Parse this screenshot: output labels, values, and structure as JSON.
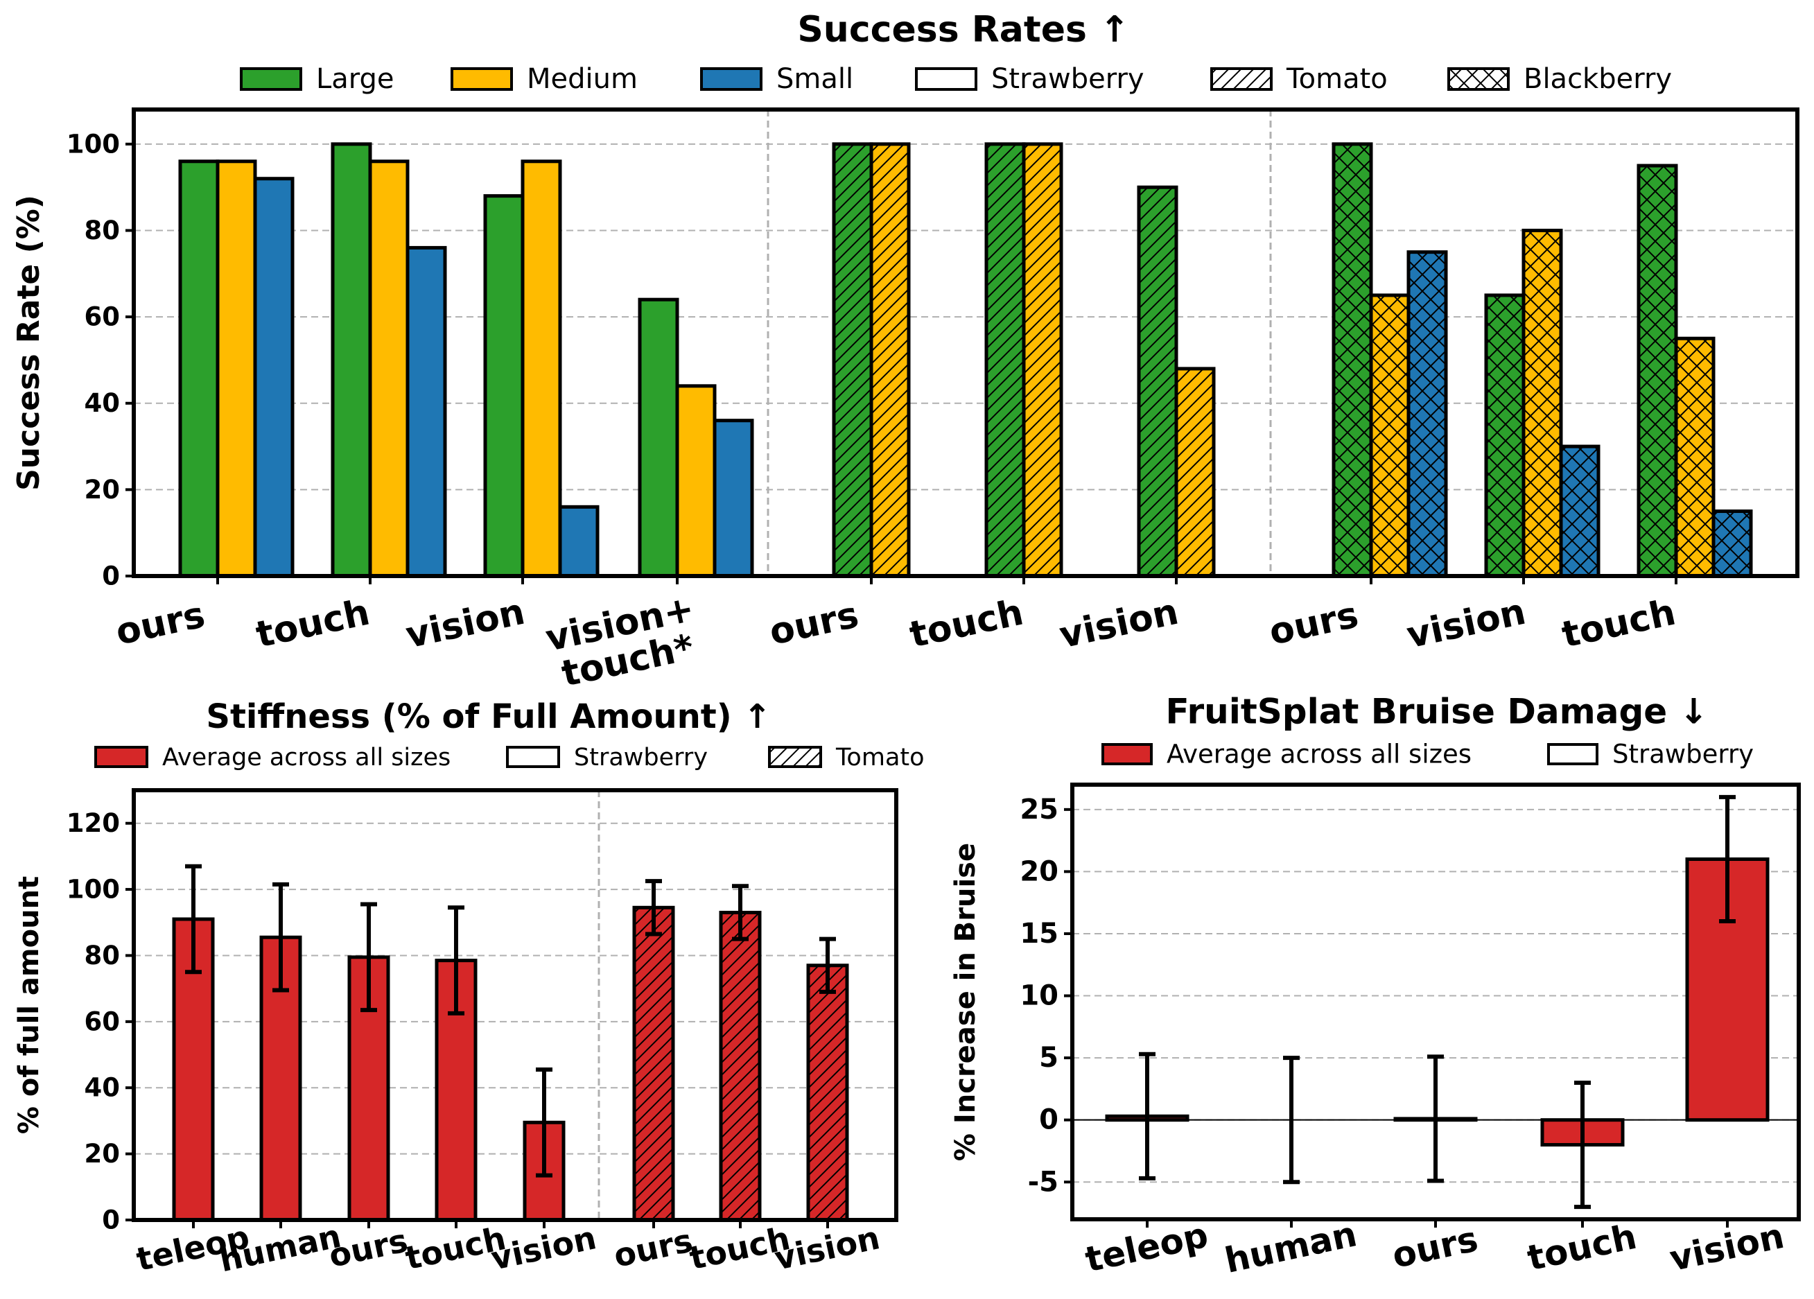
{
  "colors": {
    "large": "#2ca02c",
    "medium": "#ffbb00",
    "small": "#1f77b4",
    "average": "#d62728",
    "edge": "#000000",
    "grid": "#b0b0b0"
  },
  "chart_data": [
    {
      "id": "success",
      "type": "bar",
      "title": "Success Rates ↑",
      "ylabel": "Success Rate (%)",
      "ylim": [
        0,
        108
      ],
      "yticks": [
        0,
        20,
        40,
        60,
        80,
        100
      ],
      "grid": true,
      "legend_position": "top",
      "legend": [
        {
          "label": "Large",
          "fill": "#2ca02c",
          "hatch": "none"
        },
        {
          "label": "Medium",
          "fill": "#ffbb00",
          "hatch": "none"
        },
        {
          "label": "Small",
          "fill": "#1f77b4",
          "hatch": "none"
        },
        {
          "label": "Strawberry",
          "fill": "#ffffff",
          "hatch": "none"
        },
        {
          "label": "Tomato",
          "fill": "#ffffff",
          "hatch": "diag"
        },
        {
          "label": "Blackberry",
          "fill": "#ffffff",
          "hatch": "cross"
        }
      ],
      "groups": [
        {
          "fruit": "Strawberry",
          "hatch": "none",
          "sizes": [
            "Large",
            "Medium",
            "Small"
          ],
          "methods": [
            "ours",
            "touch",
            "vision",
            "vision+\ntouch*"
          ],
          "values": [
            [
              96,
              96,
              92
            ],
            [
              100,
              96,
              76
            ],
            [
              88,
              96,
              16
            ],
            [
              64,
              44,
              36
            ]
          ]
        },
        {
          "fruit": "Tomato",
          "hatch": "diag",
          "sizes": [
            "Large",
            "Medium"
          ],
          "methods": [
            "ours",
            "touch",
            "vision"
          ],
          "values": [
            [
              100,
              100
            ],
            [
              100,
              100
            ],
            [
              90,
              48
            ]
          ]
        },
        {
          "fruit": "Blackberry",
          "hatch": "cross",
          "sizes": [
            "Large",
            "Medium",
            "Small"
          ],
          "methods": [
            "ours",
            "vision",
            "touch"
          ],
          "values": [
            [
              100,
              65,
              75
            ],
            [
              65,
              80,
              30
            ],
            [
              95,
              55,
              15
            ]
          ]
        }
      ]
    },
    {
      "id": "stiffness",
      "type": "bar",
      "title": "Stiffness (% of Full Amount)  ↑",
      "ylabel": "% of full amount",
      "ylim": [
        0,
        130
      ],
      "yticks": [
        0,
        20,
        40,
        60,
        80,
        100,
        120
      ],
      "grid": true,
      "legend_position": "top",
      "legend": [
        {
          "label": "Average across all sizes",
          "fill": "#d62728",
          "hatch": "none"
        },
        {
          "label": "Strawberry",
          "fill": "#ffffff",
          "hatch": "none"
        },
        {
          "label": "Tomato",
          "fill": "#ffffff",
          "hatch": "diag"
        }
      ],
      "groups": [
        {
          "fruit": "Strawberry",
          "hatch": "none",
          "categories": [
            "teleop",
            "human",
            "ours",
            "touch",
            "vision"
          ],
          "values": [
            91,
            85.5,
            79.5,
            78.5,
            29.5
          ],
          "errors": [
            16,
            16,
            16,
            16,
            16
          ]
        },
        {
          "fruit": "Tomato",
          "hatch": "diag",
          "categories": [
            "ours",
            "touch",
            "vision"
          ],
          "values": [
            94.5,
            93,
            77
          ],
          "errors": [
            8,
            8,
            8
          ]
        }
      ]
    },
    {
      "id": "bruise",
      "type": "bar",
      "title": "FruitSplat Bruise Damage  ↓",
      "ylabel": "% Increase in Bruise",
      "ylim": [
        -8,
        27
      ],
      "yticks": [
        -5,
        0,
        5,
        10,
        15,
        20,
        25
      ],
      "grid": true,
      "legend_position": "top",
      "legend": [
        {
          "label": "Average across all sizes",
          "fill": "#d62728",
          "hatch": "none"
        },
        {
          "label": "Strawberry",
          "fill": "#ffffff",
          "hatch": "none"
        }
      ],
      "categories": [
        "teleop",
        "human",
        "ours",
        "touch",
        "vision"
      ],
      "values": [
        0.3,
        0,
        0.1,
        -2,
        21
      ],
      "errors": [
        5,
        5,
        5,
        5,
        5
      ]
    }
  ]
}
